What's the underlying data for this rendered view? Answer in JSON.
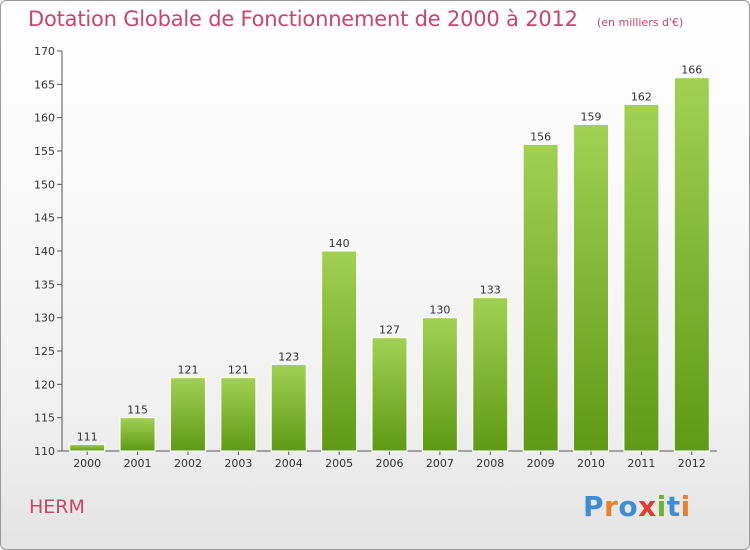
{
  "header": {
    "title": "Dotation Globale de Fonctionnement de 2000 à 2012",
    "subtitle": "(en milliers d'€)"
  },
  "footer": {
    "commune": "HERM",
    "logo_text": "Proxiti"
  },
  "colors": {
    "title": "#c8456c",
    "bar_light": "#a2d152",
    "bar_dark": "#5e9a14",
    "logo_letters": [
      "#3b8ed6",
      "#e8822a",
      "#3b8ed6",
      "#e23d2c",
      "#6ab52a",
      "#3b8ed6",
      "#e8822a"
    ]
  },
  "chart_data": {
    "type": "bar",
    "categories": [
      "2000",
      "2001",
      "2002",
      "2003",
      "2004",
      "2005",
      "2006",
      "2007",
      "2008",
      "2009",
      "2010",
      "2011",
      "2012"
    ],
    "values": [
      111,
      115,
      121,
      121,
      123,
      140,
      127,
      130,
      133,
      156,
      159,
      162,
      166
    ],
    "ylim": [
      110,
      170
    ],
    "yticks": [
      110,
      115,
      120,
      125,
      130,
      135,
      140,
      145,
      150,
      155,
      160,
      165,
      170
    ],
    "grid": false,
    "legend": "none",
    "xlabel": "",
    "ylabel": ""
  }
}
